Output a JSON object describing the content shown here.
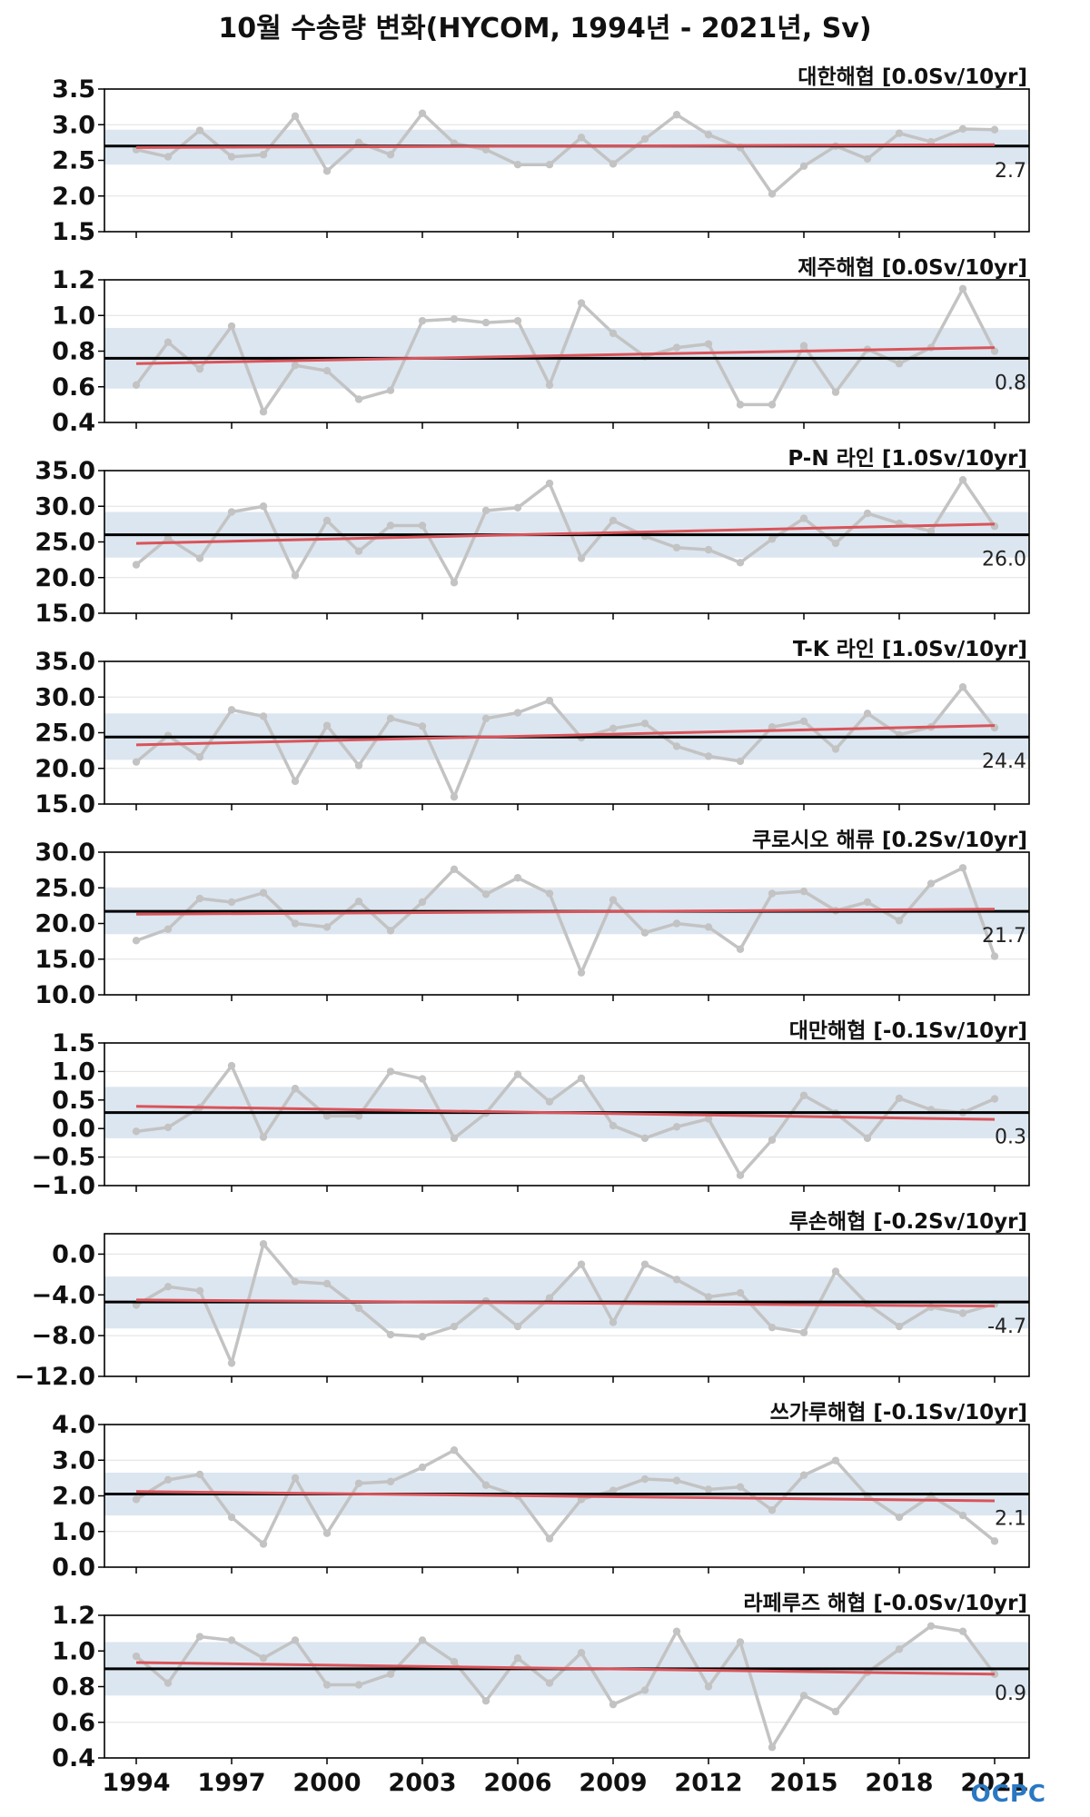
{
  "title": "10월 수송량 변화(HYCOM, 1994년 - 2021년, Sv)",
  "logo_text": "OCPC",
  "colors": {
    "series": "#c3c3c3",
    "trend": "#d9545a",
    "mean": "#000000",
    "band": "#dce6f0",
    "grid": "#e0e0e0"
  },
  "chart_data": {
    "type": "line",
    "x": [
      1994,
      1995,
      1996,
      1997,
      1998,
      1999,
      2000,
      2001,
      2002,
      2003,
      2004,
      2005,
      2006,
      2007,
      2008,
      2009,
      2010,
      2011,
      2012,
      2013,
      2014,
      2015,
      2016,
      2017,
      2018,
      2019,
      2020,
      2021
    ],
    "xticks": [
      "1994",
      "1997",
      "2000",
      "2003",
      "2006",
      "2009",
      "2012",
      "2015",
      "2018",
      "2021"
    ],
    "panels": [
      {
        "name": "대한해협",
        "label": "대한해협 [0.0Sv/10yr]",
        "ylim": [
          1.5,
          3.5
        ],
        "yticks": [
          "1.5",
          "2.0",
          "2.5",
          "3.0",
          "3.5"
        ],
        "ytick_values": [
          1.5,
          2.0,
          2.5,
          3.0,
          3.5
        ],
        "mean": 2.7,
        "mean_label": "2.7",
        "band": [
          2.44,
          2.93
        ],
        "trend": [
          2.68,
          2.72
        ],
        "values": [
          2.65,
          2.55,
          2.92,
          2.55,
          2.58,
          3.12,
          2.35,
          2.75,
          2.58,
          3.16,
          2.74,
          2.65,
          2.44,
          2.44,
          2.82,
          2.45,
          2.8,
          3.14,
          2.86,
          2.68,
          2.03,
          2.42,
          2.7,
          2.52,
          2.88,
          2.76,
          2.94,
          2.93
        ]
      },
      {
        "name": "제주해협",
        "label": "제주해협 [0.0Sv/10yr]",
        "ylim": [
          0.4,
          1.2
        ],
        "yticks": [
          "0.4",
          "0.6",
          "0.8",
          "1.0",
          "1.2"
        ],
        "ytick_values": [
          0.4,
          0.6,
          0.8,
          1.0,
          1.2
        ],
        "mean": 0.76,
        "mean_label": "0.8",
        "band": [
          0.59,
          0.93
        ],
        "trend": [
          0.73,
          0.82
        ],
        "values": [
          0.61,
          0.85,
          0.7,
          0.94,
          0.46,
          0.72,
          0.69,
          0.53,
          0.58,
          0.97,
          0.98,
          0.96,
          0.97,
          0.61,
          1.07,
          0.9,
          0.77,
          0.82,
          0.84,
          0.5,
          0.5,
          0.83,
          0.57,
          0.81,
          0.73,
          0.82,
          1.15,
          0.8
        ]
      },
      {
        "name": "P-N 라인",
        "label": "P-N 라인 [1.0Sv/10yr]",
        "ylim": [
          15,
          35
        ],
        "yticks": [
          "15.0",
          "20.0",
          "25.0",
          "30.0",
          "35.0"
        ],
        "ytick_values": [
          15,
          20,
          25,
          30,
          35
        ],
        "mean": 26.0,
        "mean_label": "26.0",
        "band": [
          22.8,
          29.2
        ],
        "trend": [
          24.8,
          27.5
        ],
        "values": [
          21.8,
          25.5,
          22.7,
          29.2,
          30.0,
          20.3,
          28.0,
          23.7,
          27.3,
          27.3,
          19.3,
          29.4,
          29.8,
          33.2,
          22.7,
          28.0,
          25.8,
          24.2,
          23.9,
          22.1,
          25.4,
          28.3,
          24.8,
          29.0,
          27.6,
          26.5,
          33.7,
          27.2
        ]
      },
      {
        "name": "T-K 라인",
        "label": "T-K 라인 [1.0Sv/10yr]",
        "ylim": [
          15,
          35
        ],
        "yticks": [
          "15.0",
          "20.0",
          "25.0",
          "30.0",
          "35.0"
        ],
        "ytick_values": [
          15,
          20,
          25,
          30,
          35
        ],
        "mean": 24.4,
        "mean_label": "24.4",
        "band": [
          21.2,
          27.7
        ],
        "trend": [
          23.3,
          26.0
        ],
        "values": [
          20.9,
          24.6,
          21.6,
          28.2,
          27.3,
          18.2,
          26.0,
          20.4,
          27.0,
          25.9,
          16.0,
          27.0,
          27.8,
          29.5,
          24.3,
          25.6,
          26.3,
          23.1,
          21.7,
          21.0,
          25.8,
          26.6,
          22.7,
          27.7,
          24.7,
          25.8,
          31.4,
          25.7
        ]
      },
      {
        "name": "쿠로시오 해류",
        "label": "쿠로시오 해류 [0.2Sv/10yr]",
        "ylim": [
          10,
          30
        ],
        "yticks": [
          "10.0",
          "15.0",
          "20.0",
          "25.0",
          "30.0"
        ],
        "ytick_values": [
          10,
          15,
          20,
          25,
          30
        ],
        "mean": 21.7,
        "mean_label": "21.7",
        "band": [
          18.5,
          24.9
        ],
        "trend": [
          21.3,
          22.0
        ],
        "values": [
          17.6,
          19.2,
          23.5,
          23.0,
          24.3,
          20.0,
          19.5,
          23.1,
          19.0,
          23.0,
          27.6,
          24.1,
          26.4,
          24.2,
          13.1,
          23.3,
          18.7,
          20.0,
          19.5,
          16.4,
          24.2,
          24.5,
          21.8,
          23.0,
          20.4,
          25.6,
          27.8,
          15.4
        ]
      },
      {
        "name": "대만해협",
        "label": "대만해협 [-0.1Sv/10yr]",
        "ylim": [
          -1.0,
          1.5
        ],
        "yticks": [
          "−1.0",
          "−0.5",
          "0.0",
          "0.5",
          "1.0",
          "1.5"
        ],
        "ytick_values": [
          -1.0,
          -0.5,
          0.0,
          0.5,
          1.0,
          1.5
        ],
        "mean": 0.28,
        "mean_label": "0.3",
        "band": [
          -0.17,
          0.73
        ],
        "trend": [
          0.39,
          0.16
        ],
        "values": [
          -0.05,
          0.02,
          0.37,
          1.1,
          -0.15,
          0.7,
          0.22,
          0.22,
          1.0,
          0.87,
          -0.17,
          0.27,
          0.95,
          0.47,
          0.88,
          0.05,
          -0.17,
          0.03,
          0.17,
          -0.82,
          -0.2,
          0.58,
          0.27,
          -0.17,
          0.53,
          0.33,
          0.28,
          0.52
        ]
      },
      {
        "name": "루손해협",
        "label": "루손해협 [-0.2Sv/10yr]",
        "ylim": [
          -12,
          2
        ],
        "yticks": [
          "−12.0",
          "−8.0",
          "−4.0",
          "0.0"
        ],
        "ytick_values": [
          -12,
          -8,
          -4,
          0
        ],
        "mean": -4.7,
        "mean_label": "-4.7",
        "band": [
          -7.3,
          -2.2
        ],
        "trend": [
          -4.5,
          -5.1
        ],
        "values": [
          -5.0,
          -3.2,
          -3.6,
          -10.7,
          1.0,
          -2.7,
          -2.9,
          -5.3,
          -7.9,
          -8.1,
          -7.1,
          -4.6,
          -7.1,
          -4.3,
          -1.0,
          -6.7,
          -1.0,
          -2.5,
          -4.2,
          -3.8,
          -7.2,
          -7.7,
          -1.7,
          -4.9,
          -7.1,
          -5.2,
          -5.8,
          -4.9
        ]
      },
      {
        "name": "쓰가루해협",
        "label": "쓰가루해협 [-0.1Sv/10yr]",
        "ylim": [
          0,
          4
        ],
        "yticks": [
          "0.0",
          "1.0",
          "2.0",
          "3.0",
          "4.0"
        ],
        "ytick_values": [
          0,
          1,
          2,
          3,
          4
        ],
        "mean": 2.05,
        "mean_label": "2.1",
        "band": [
          1.45,
          2.65
        ],
        "trend": [
          2.12,
          1.86
        ],
        "values": [
          1.9,
          2.45,
          2.6,
          1.4,
          0.65,
          2.5,
          0.95,
          2.35,
          2.4,
          2.8,
          3.28,
          2.3,
          2.0,
          0.8,
          1.9,
          2.15,
          2.47,
          2.43,
          2.18,
          2.25,
          1.6,
          2.58,
          2.99,
          2.0,
          1.4,
          2.0,
          1.45,
          0.73
        ]
      },
      {
        "name": "라페루즈 해협",
        "label": "라페루즈 해협 [-0.0Sv/10yr]",
        "ylim": [
          0.4,
          1.2
        ],
        "yticks": [
          "0.4",
          "0.6",
          "0.8",
          "1.0",
          "1.2"
        ],
        "ytick_values": [
          0.4,
          0.6,
          0.8,
          1.0,
          1.2
        ],
        "mean": 0.9,
        "mean_label": "0.9",
        "band": [
          0.75,
          1.05
        ],
        "trend": [
          0.935,
          0.87
        ],
        "values": [
          0.97,
          0.82,
          1.08,
          1.06,
          0.96,
          1.06,
          0.81,
          0.81,
          0.87,
          1.06,
          0.94,
          0.72,
          0.96,
          0.82,
          0.99,
          0.7,
          0.78,
          1.11,
          0.8,
          1.05,
          0.46,
          0.75,
          0.66,
          0.88,
          1.01,
          1.14,
          1.11,
          0.87
        ]
      }
    ]
  }
}
